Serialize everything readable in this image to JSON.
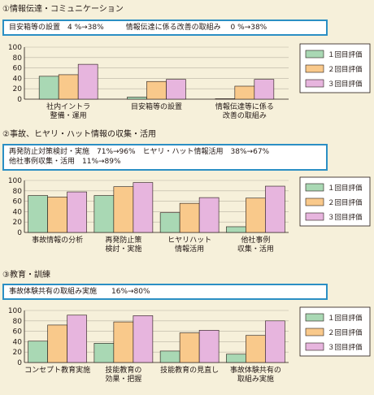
{
  "colors": {
    "bg": "#f6f0da",
    "box_border": "#2b8fc4",
    "bar1": "#a9d8b4",
    "bar2": "#f9c98b",
    "bar3": "#e7b5de"
  },
  "sections": [
    {
      "title": "①情報伝達・コミュニケーション",
      "box_lines": [
        "目安箱等の設置　4 %→38%　　　情報伝達に係る改善の取組み　 0 %→38%"
      ],
      "chart_data": {
        "type": "bar",
        "categories": [
          [
            "社内イントラ",
            "整備・運用"
          ],
          [
            "目安箱等の設置"
          ],
          [
            "情報伝達等に係る",
            "改善の取組み"
          ]
        ],
        "series": [
          {
            "name": "１回目評価",
            "values": [
              44,
              4,
              0
            ]
          },
          {
            "name": "２回目評価",
            "values": [
              47,
              34,
              25
            ]
          },
          {
            "name": "３回目評価",
            "values": [
              67,
              38,
              38
            ]
          }
        ],
        "yticks": [
          "100",
          "80",
          "60",
          "40",
          "20",
          "0"
        ],
        "ylim": [
          0,
          100
        ]
      }
    },
    {
      "title": "②事故、ヒヤリ・ハット情報の収集・活用",
      "box_lines": [
        "再発防止対策検討・実施　71%→96%　ヒヤリ・ハット情報活用　38%→67%",
        "他社事例収集・活用　11%→89%"
      ],
      "chart_data": {
        "type": "bar",
        "categories": [
          [
            "事故情報の分析"
          ],
          [
            "再発防止策",
            "検討・実施"
          ],
          [
            "ヒヤリハット",
            "情報活用"
          ],
          [
            "他社事例",
            "収集・活用"
          ]
        ],
        "series": [
          {
            "name": "１回目評価",
            "values": [
              71,
              71,
              38,
              11
            ]
          },
          {
            "name": "２回目評価",
            "values": [
              68,
              88,
              56,
              66
            ]
          },
          {
            "name": "３回目評価",
            "values": [
              78,
              96,
              67,
              89
            ]
          }
        ],
        "yticks": [
          "100",
          "80",
          "60",
          "40",
          "20",
          "0"
        ],
        "ylim": [
          0,
          100
        ]
      }
    },
    {
      "title": "③教育・訓練",
      "box_lines": [
        "事故体験共有の取組み実施　　16%→80%"
      ],
      "chart_data": {
        "type": "bar",
        "categories": [
          [
            "コンセプト教育実施"
          ],
          [
            "技能教育の",
            "効果・把握"
          ],
          [
            "技能教育の見直し"
          ],
          [
            "事故体験共有の",
            "取組み実施"
          ]
        ],
        "series": [
          {
            "name": "１回目評価",
            "values": [
              41,
              37,
              22,
              16
            ]
          },
          {
            "name": "２回目評価",
            "values": [
              72,
              78,
              57,
              52
            ]
          },
          {
            "name": "３回目評価",
            "values": [
              91,
              90,
              62,
              80
            ]
          }
        ],
        "yticks": [
          "100",
          "80",
          "60",
          "40",
          "20",
          "0"
        ],
        "ylim": [
          0,
          100
        ]
      }
    }
  ]
}
